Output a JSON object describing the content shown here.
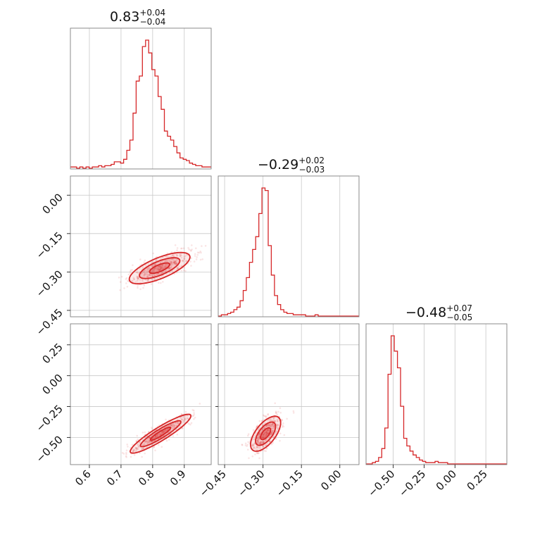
{
  "chart_data": {
    "type": "corner",
    "color": "#d62728",
    "params": [
      {
        "title": {
          "median": "0.83",
          "plus": "+0.04",
          "minus": "−0.04"
        },
        "range": [
          0.54,
          0.985
        ],
        "ticks": [
          {
            "v": 0.6,
            "label": "0.6"
          },
          {
            "v": 0.7,
            "label": "0.7"
          },
          {
            "v": 0.8,
            "label": "0.8"
          },
          {
            "v": 0.9,
            "label": "0.9"
          }
        ],
        "hist": {
          "start": 0.54,
          "width": 0.0099,
          "counts": [
            1,
            1,
            0,
            1,
            0,
            1,
            0,
            1,
            1,
            2,
            1,
            2,
            2,
            3,
            5,
            5,
            4,
            7,
            14,
            22,
            43,
            68,
            72,
            95,
            100,
            90,
            77,
            72,
            56,
            46,
            29,
            25,
            22,
            17,
            12,
            8,
            7,
            6,
            4,
            3,
            2,
            2,
            1,
            1,
            1
          ]
        }
      },
      {
        "title": {
          "median": "−0.29",
          "plus": "+0.02",
          "minus": "−0.03"
        },
        "range": [
          -0.475,
          0.075
        ],
        "ticks": [
          {
            "v": -0.45,
            "label": "−0.45"
          },
          {
            "v": -0.3,
            "label": "−0.30"
          },
          {
            "v": -0.15,
            "label": "−0.15"
          },
          {
            "v": 0.0,
            "label": "0.00"
          }
        ],
        "hist": {
          "start": -0.475,
          "width": 0.0122,
          "counts": [
            0,
            1,
            1,
            2,
            3,
            5,
            7,
            12,
            20,
            30,
            42,
            52,
            62,
            80,
            100,
            98,
            55,
            32,
            16,
            9,
            5,
            3,
            2,
            2,
            1,
            1,
            1,
            1,
            0,
            0,
            0,
            1,
            0,
            0,
            0,
            0,
            0,
            0,
            0,
            0,
            0,
            0,
            0,
            0,
            0
          ]
        }
      },
      {
        "title": {
          "median": "−0.48",
          "plus": "+0.07",
          "minus": "−0.05"
        },
        "range": [
          -0.72,
          0.42
        ],
        "ticks": [
          {
            "v": -0.5,
            "label": "−0.50"
          },
          {
            "v": -0.25,
            "label": "−0.25"
          },
          {
            "v": 0.0,
            "label": "0.00"
          },
          {
            "v": 0.25,
            "label": "0.25"
          }
        ],
        "hist": {
          "start": -0.72,
          "width": 0.0254,
          "counts": [
            0,
            0,
            1,
            2,
            5,
            12,
            28,
            70,
            100,
            88,
            75,
            45,
            20,
            14,
            10,
            7,
            5,
            3,
            2,
            1,
            1,
            1,
            2,
            1,
            1,
            1,
            0,
            0,
            0,
            0,
            0,
            0,
            0,
            0,
            0,
            0,
            0,
            0,
            0,
            0,
            0,
            0,
            0,
            0,
            0
          ]
        }
      }
    ],
    "pairs": [
      {
        "row": 1,
        "col": 0,
        "center": [
          0.822,
          -0.285
        ],
        "cov": [
          [
            0.0016,
            0.00072
          ],
          [
            0.00072,
            0.00065
          ]
        ],
        "levels": [
          0.8,
          1.6,
          2.4
        ],
        "scatter_extent": [
          [
            0.69,
            0.985
          ],
          [
            -0.43,
            -0.17
          ]
        ]
      },
      {
        "row": 2,
        "col": 0,
        "center": [
          0.825,
          -0.47
        ],
        "cov": [
          [
            0.0016,
            0.0024
          ],
          [
            0.0024,
            0.0043
          ]
        ],
        "levels": [
          0.8,
          1.6,
          2.4
        ],
        "scatter_extent": [
          [
            0.66,
            0.985
          ],
          [
            -0.66,
            -0.05
          ]
        ]
      },
      {
        "row": 2,
        "col": 1,
        "center": [
          -0.29,
          -0.47
        ],
        "cov": [
          [
            0.0006,
            0.0009
          ],
          [
            0.0009,
            0.0035
          ]
        ],
        "levels": [
          0.8,
          1.6,
          2.4
        ],
        "scatter_extent": [
          [
            -0.47,
            -0.15
          ],
          [
            -0.68,
            -0.22
          ]
        ]
      }
    ]
  }
}
